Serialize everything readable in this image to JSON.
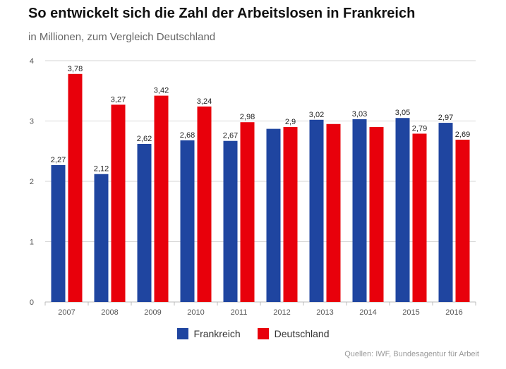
{
  "chart_data": {
    "type": "bar",
    "title": "So entwickelt sich die Zahl der Arbeitslosen in Frankreich",
    "subtitle": "in Millionen, zum Vergleich Deutschland",
    "categories": [
      "2007",
      "2008",
      "2009",
      "2010",
      "2011",
      "2012",
      "2013",
      "2014",
      "2015",
      "2016"
    ],
    "series": [
      {
        "name": "Frankreich",
        "color": "#1f45a0",
        "values": [
          2.27,
          2.12,
          2.62,
          2.68,
          2.67,
          2.87,
          3.02,
          3.03,
          3.05,
          2.97
        ],
        "labels": [
          "2,27",
          "2,12",
          "2,62",
          "2,68",
          "2,67",
          "",
          "3,02",
          "3,03",
          "3,05",
          "2,97"
        ]
      },
      {
        "name": "Deutschland",
        "color": "#e8000b",
        "values": [
          3.78,
          3.27,
          3.42,
          3.24,
          2.98,
          2.9,
          2.95,
          2.9,
          2.79,
          2.69
        ],
        "labels": [
          "3,78",
          "3,27",
          "3,42",
          "3,24",
          "2,98",
          "2,9",
          "",
          "",
          "2,79",
          "2,69"
        ]
      }
    ],
    "ylim": [
      0,
      4
    ],
    "yticks": [
      "0",
      "1",
      "2",
      "3",
      "4"
    ],
    "grid": true,
    "legend_position": "bottom-center",
    "source": "Quellen: IWF, Bundesagentur für Arbeit"
  }
}
